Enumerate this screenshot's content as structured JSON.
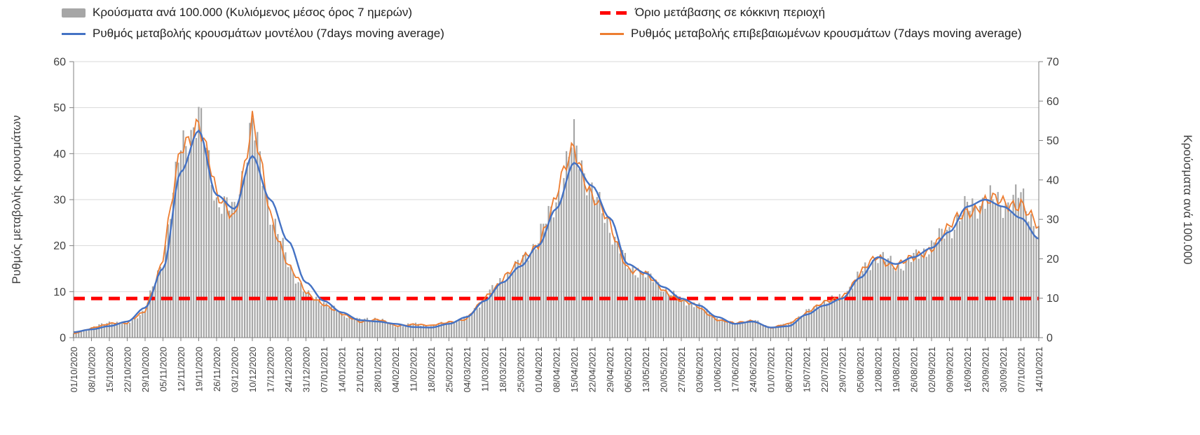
{
  "legend": {
    "bars": "Κρούσματα ανά 100.000 (Κυλιόμενος μέσος όρος 7 ημερών)",
    "threshold": "Όριο μετάβασης σε κόκκινη περιοχή",
    "model": "Ρυθμός μεταβολής κρουσμάτων μοντέλου (7days moving average)",
    "confirmed": "Ρυθμός μεταβολής επιβεβαιωμένων κρουσμάτων (7days moving average)"
  },
  "colors": {
    "bar": "#a6a6a6",
    "model": "#4472c4",
    "confirmed": "#ed7d31",
    "threshold": "#ff0000",
    "grid": "#d9d9d9",
    "axis": "#808080",
    "text": "#404040"
  },
  "chart_data": {
    "type": "combo",
    "title": "",
    "legend_position": "top",
    "grid": "horizontal",
    "x_note": "weekly tick labels; bars are daily values interpolated between weekly anchors",
    "x": [
      "01/10/2020",
      "08/10/2020",
      "15/10/2020",
      "22/10/2020",
      "29/10/2020",
      "05/11/2020",
      "12/11/2020",
      "19/11/2020",
      "26/11/2020",
      "03/12/2020",
      "10/12/2020",
      "17/12/2020",
      "24/12/2020",
      "31/12/2020",
      "07/01/2021",
      "14/01/2021",
      "21/01/2021",
      "28/01/2021",
      "04/02/2021",
      "11/02/2021",
      "18/02/2021",
      "25/02/2021",
      "04/03/2021",
      "11/03/2021",
      "18/03/2021",
      "25/03/2021",
      "01/04/2021",
      "08/04/2021",
      "15/04/2021",
      "22/04/2021",
      "29/04/2021",
      "06/05/2021",
      "13/05/2021",
      "20/05/2021",
      "27/05/2021",
      "03/06/2021",
      "10/06/2021",
      "17/06/2021",
      "24/06/2021",
      "01/07/2021",
      "08/07/2021",
      "15/07/2021",
      "22/07/2021",
      "29/07/2021",
      "05/08/2021",
      "12/08/2021",
      "19/08/2021",
      "26/08/2021",
      "02/09/2021",
      "09/09/2021",
      "16/09/2021",
      "23/09/2021",
      "30/09/2021",
      "07/10/2021",
      "14/10/2021"
    ],
    "left_axis": {
      "label": "Ρυθμός μεταβολής κρουσμάτων",
      "min": 0,
      "max": 60,
      "ticks": [
        0,
        10,
        20,
        30,
        40,
        50,
        60
      ]
    },
    "right_axis": {
      "label": "Κρούσματα ανά 100.000",
      "min": 0,
      "max": 70,
      "ticks": [
        0,
        10,
        20,
        30,
        40,
        50,
        60,
        70
      ]
    },
    "series": [
      {
        "name": "Κρούσματα ανά 100.000 (Κυλιόμενος μέσος όρος 7 ημερών)",
        "type": "bar",
        "axis": "right",
        "color": "#a6a6a6",
        "values": [
          1,
          2.5,
          4,
          3.5,
          7,
          20,
          48,
          56,
          35,
          32,
          54,
          32,
          19,
          11,
          9,
          6,
          4.5,
          5,
          3,
          3.5,
          3,
          4,
          5,
          10,
          15,
          19,
          25,
          35,
          50,
          37,
          28,
          18,
          16,
          12.5,
          9.5,
          8,
          5,
          3.5,
          4.5,
          2.5,
          3.5,
          6.5,
          9,
          10.5,
          16,
          21,
          18,
          20,
          23.5,
          27.5,
          33,
          35,
          34,
          36,
          27
        ]
      },
      {
        "name": "Ρυθμός μεταβολής κρουσμάτων μοντέλου (7days moving average)",
        "type": "line",
        "axis": "left",
        "color": "#4472c4",
        "values": [
          1.2,
          1.8,
          2.5,
          3.5,
          6.5,
          15,
          36,
          45,
          31,
          28,
          39.5,
          30,
          21,
          12,
          8,
          5.5,
          3.8,
          3.5,
          3,
          2.3,
          2.2,
          3,
          4.5,
          8,
          12,
          15.5,
          20,
          28,
          38,
          33,
          26,
          16,
          14,
          11,
          8.5,
          7,
          4.5,
          3,
          3.5,
          2.2,
          2.5,
          5,
          7,
          8.5,
          13,
          17.5,
          16,
          17.5,
          19.5,
          23,
          28.5,
          30,
          28.5,
          26,
          21.5
        ]
      },
      {
        "name": "Ρυθμός μεταβολής επιβεβαιωμένων κρουσμάτων (7days moving average)",
        "type": "line",
        "axis": "left",
        "color": "#ed7d31",
        "values": [
          0.8,
          2,
          3.2,
          3,
          6,
          17,
          41,
          48,
          30,
          27,
          46,
          27,
          16,
          9.5,
          7.5,
          5,
          3.5,
          4,
          2.5,
          3,
          2.5,
          3.5,
          4,
          8.5,
          13,
          16,
          21,
          30,
          42,
          31,
          24,
          15.5,
          13.5,
          10.5,
          8,
          6.5,
          4,
          3,
          3.8,
          2,
          3,
          5.5,
          7.5,
          9,
          13.5,
          18,
          15.5,
          17,
          20,
          23.5,
          28,
          29.5,
          29,
          30,
          23
        ]
      },
      {
        "name": "Όριο μετάβασης σε κόκκινη περιοχή",
        "type": "threshold",
        "axis": "left",
        "color": "#ff0000",
        "value": 8.5
      }
    ]
  }
}
